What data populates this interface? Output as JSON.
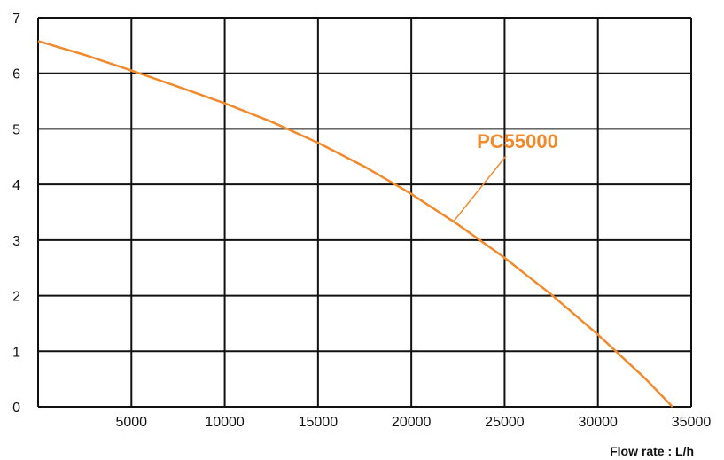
{
  "chart_data": {
    "type": "line",
    "title": "",
    "xlabel": "Flow rate : L/h",
    "ylabel": "",
    "xlim": [
      0,
      35000
    ],
    "ylim": [
      0,
      7
    ],
    "x_ticks": [
      5000,
      10000,
      15000,
      20000,
      25000,
      30000,
      35000
    ],
    "y_ticks": [
      0,
      1,
      2,
      3,
      4,
      5,
      6,
      7
    ],
    "grid": true,
    "series": [
      {
        "name": "PC55000",
        "color": "#f08a2c",
        "x": [
          0,
          2500,
          5000,
          7500,
          10000,
          12500,
          15000,
          17500,
          20000,
          22500,
          25000,
          27500,
          30000,
          32500,
          34000
        ],
        "y": [
          6.58,
          6.33,
          6.05,
          5.76,
          5.46,
          5.13,
          4.75,
          4.32,
          3.83,
          3.28,
          2.68,
          2.02,
          1.3,
          0.52,
          0.0
        ]
      }
    ],
    "annotation": {
      "text": "PC55000",
      "points_to_x": 22300,
      "points_to_y": 3.35
    }
  }
}
